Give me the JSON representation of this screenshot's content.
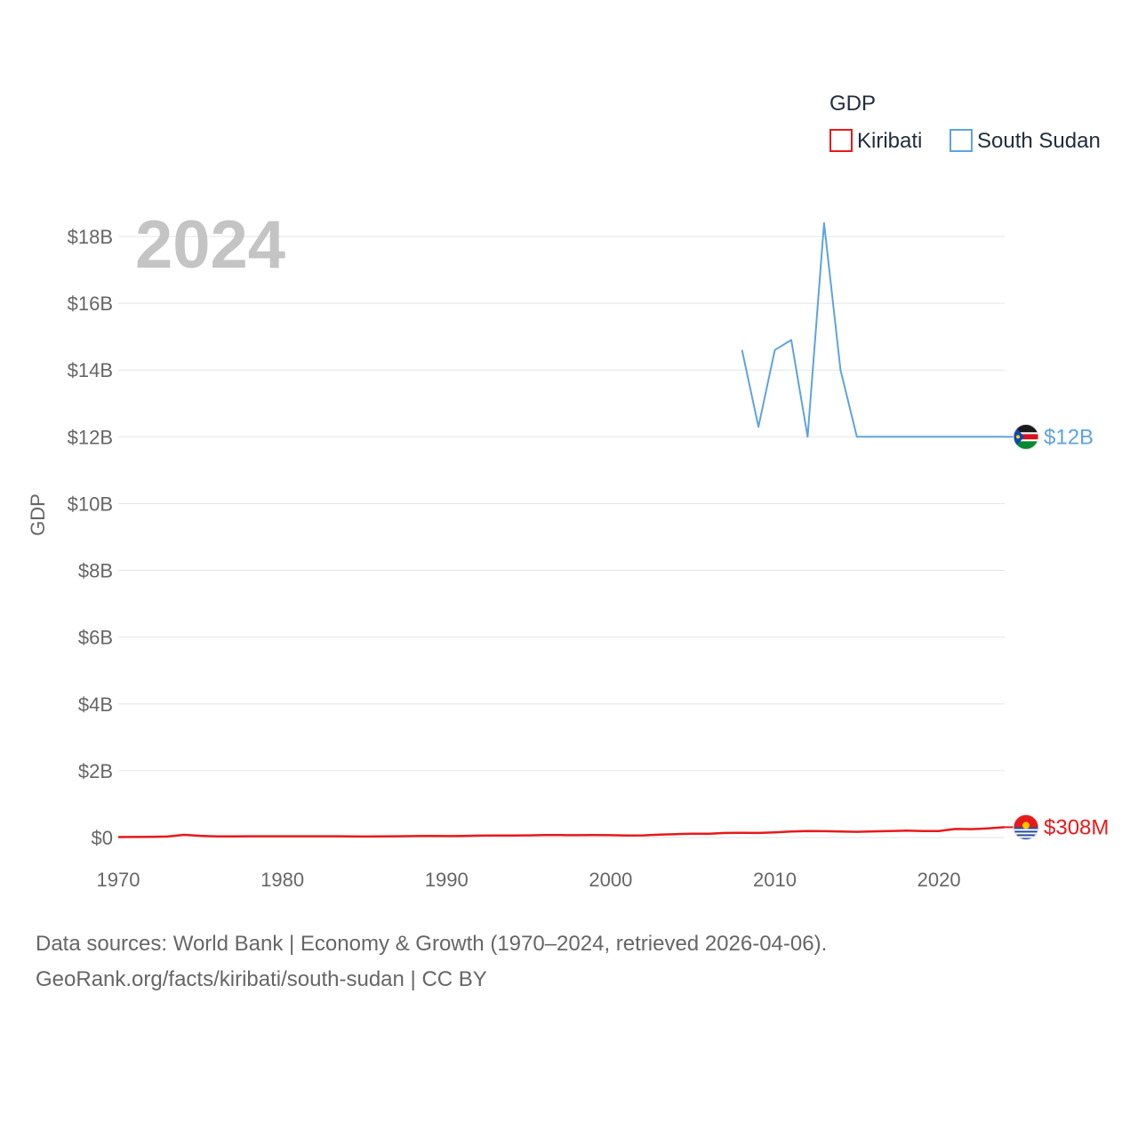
{
  "chart_data": {
    "type": "line",
    "legend_title": "GDP",
    "ylabel": "GDP",
    "year_label": "2024",
    "xlim": [
      1970,
      2024
    ],
    "ylim": [
      0,
      18500000000
    ],
    "x_ticks": [
      1970,
      1980,
      1990,
      2000,
      2010,
      2020
    ],
    "y_ticks": [
      {
        "value": 0,
        "label": "$0"
      },
      {
        "value": 2000000000,
        "label": "$2B"
      },
      {
        "value": 4000000000,
        "label": "$4B"
      },
      {
        "value": 6000000000,
        "label": "$6B"
      },
      {
        "value": 8000000000,
        "label": "$8B"
      },
      {
        "value": 10000000000,
        "label": "$10B"
      },
      {
        "value": 12000000000,
        "label": "$12B"
      },
      {
        "value": 14000000000,
        "label": "$14B"
      },
      {
        "value": 16000000000,
        "label": "$16B"
      },
      {
        "value": 18000000000,
        "label": "$18B"
      }
    ],
    "legend_placement": "top-right",
    "series": [
      {
        "name": "Kiribati",
        "color": "#e8191b",
        "end_label": "$308M",
        "flag": "kiribati-flag-icon",
        "x": [
          1970,
          1971,
          1972,
          1973,
          1974,
          1975,
          1976,
          1977,
          1978,
          1979,
          1980,
          1981,
          1982,
          1983,
          1984,
          1985,
          1986,
          1987,
          1988,
          1989,
          1990,
          1991,
          1992,
          1993,
          1994,
          1995,
          1996,
          1997,
          1998,
          1999,
          2000,
          2001,
          2002,
          2003,
          2004,
          2005,
          2006,
          2007,
          2008,
          2009,
          2010,
          2011,
          2012,
          2013,
          2014,
          2015,
          2016,
          2017,
          2018,
          2019,
          2020,
          2021,
          2022,
          2023,
          2024
        ],
        "values": [
          14000000,
          15000000,
          20000000,
          30000000,
          80000000,
          50000000,
          35000000,
          35000000,
          38000000,
          36000000,
          38000000,
          37000000,
          36000000,
          36000000,
          34000000,
          30000000,
          32000000,
          38000000,
          42000000,
          44000000,
          42000000,
          46000000,
          55000000,
          58000000,
          62000000,
          65000000,
          72000000,
          72000000,
          70000000,
          72000000,
          70000000,
          60000000,
          65000000,
          85000000,
          100000000,
          112000000,
          112000000,
          135000000,
          140000000,
          135000000,
          155000000,
          180000000,
          195000000,
          190000000,
          180000000,
          170000000,
          185000000,
          195000000,
          205000000,
          195000000,
          195000000,
          255000000,
          250000000,
          275000000,
          308000000
        ]
      },
      {
        "name": "South Sudan",
        "color": "#5ea3e0",
        "end_label": "$12B",
        "flag": "south-sudan-flag-icon",
        "x": [
          2008,
          2009,
          2010,
          2011,
          2012,
          2013,
          2014,
          2015,
          2016,
          2017,
          2018,
          2019,
          2020,
          2021,
          2022,
          2023,
          2024
        ],
        "values": [
          14600000000,
          12300000000,
          14600000000,
          14900000000,
          12000000000,
          18400000000,
          14000000000,
          12000000000,
          12000000000,
          12000000000,
          12000000000,
          12000000000,
          12000000000,
          12000000000,
          12000000000,
          12000000000,
          12000000000
        ]
      }
    ]
  },
  "footer": {
    "line1": "Data sources: World Bank | Economy & Growth (1970–2024, retrieved 2026-04-06).",
    "line2": "GeoRank.org/facts/kiribati/south-sudan | CC BY"
  }
}
